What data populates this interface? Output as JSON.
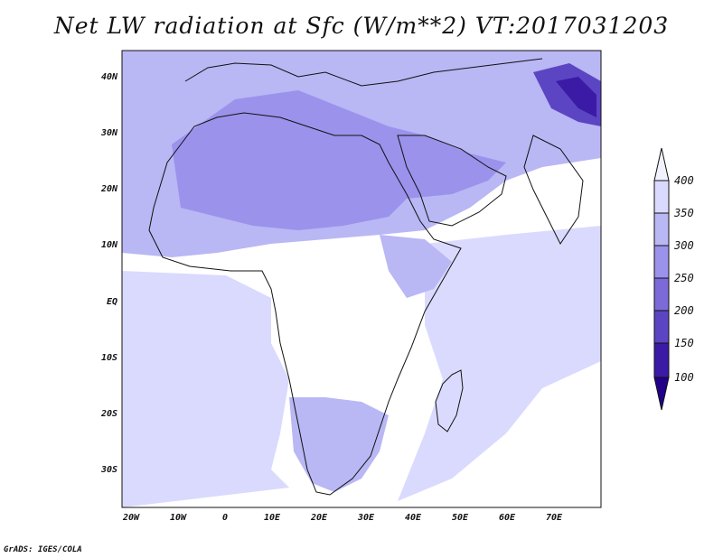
{
  "title": "Net LW radiation at Sfc (W/m**2) VT:2017031203",
  "credit": "GrADS: IGES/COLA",
  "map": {
    "lat_labels": [
      "40N",
      "30N",
      "20N",
      "10N",
      "EQ",
      "10S",
      "20S",
      "30S"
    ],
    "lon_labels": [
      "20W",
      "10W",
      "0",
      "10E",
      "20E",
      "30E",
      "40E",
      "50E",
      "60E",
      "70E"
    ]
  },
  "colorbar": {
    "labels": [
      "400",
      "350",
      "300",
      "250",
      "200",
      "150",
      "100"
    ],
    "colors": [
      "#f2f2ff",
      "#dadaff",
      "#b9b7f4",
      "#9b92ec",
      "#7b6ad8",
      "#5c45c2",
      "#3b1aa6",
      "#22008a"
    ]
  }
}
